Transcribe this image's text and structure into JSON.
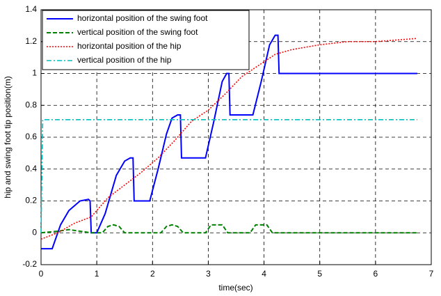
{
  "chart_data": {
    "type": "line",
    "xlabel": "time(sec)",
    "ylabel": "hip and swing foot tip position(m)",
    "xlim": [
      0,
      7
    ],
    "xticks": [
      0,
      1,
      2,
      3,
      4,
      5,
      6,
      7
    ],
    "ylim": [
      -0.2,
      1.4
    ],
    "yticks": [
      -0.2,
      0,
      0.2,
      0.4,
      0.6,
      0.8,
      1,
      1.2,
      1.4
    ],
    "grid": true,
    "legend": "upper left",
    "series": [
      {
        "name": " horizontal position of the swing foot",
        "color": "#0000ff",
        "style": "solid",
        "x": [
          0,
          0.2,
          0.35,
          0.5,
          0.7,
          0.85,
          0.88,
          0.9,
          1.0,
          1.15,
          1.35,
          1.5,
          1.6,
          1.65,
          1.67,
          1.95,
          2.1,
          2.25,
          2.35,
          2.45,
          2.5,
          2.52,
          2.95,
          3.1,
          3.25,
          3.33,
          3.37,
          3.39,
          3.8,
          3.95,
          4.1,
          4.2,
          4.25,
          4.27,
          6.75
        ],
        "values": [
          -0.1,
          -0.1,
          0.05,
          0.14,
          0.2,
          0.21,
          0.2,
          0.0,
          0.0,
          0.12,
          0.36,
          0.45,
          0.47,
          0.47,
          0.2,
          0.2,
          0.4,
          0.62,
          0.72,
          0.74,
          0.74,
          0.47,
          0.47,
          0.7,
          0.95,
          1.0,
          1.0,
          0.74,
          0.74,
          0.95,
          1.18,
          1.24,
          1.24,
          1.0,
          1.0
        ]
      },
      {
        "name": "vertical position of the swing foot",
        "color": "#008000",
        "style": "dashed",
        "x": [
          0,
          0.3,
          0.5,
          0.7,
          0.9,
          1.1,
          1.2,
          1.3,
          1.4,
          1.5,
          2.15,
          2.25,
          2.35,
          2.45,
          2.55,
          2.95,
          3.05,
          3.25,
          3.35,
          3.75,
          3.85,
          4.05,
          4.15,
          6.75
        ],
        "values": [
          0,
          0.01,
          0.02,
          0.01,
          0,
          0,
          0.04,
          0.05,
          0.04,
          0,
          0,
          0.04,
          0.05,
          0.04,
          0,
          0,
          0.05,
          0.05,
          0,
          0,
          0.05,
          0.05,
          0,
          0
        ]
      },
      {
        "name": "horizontal position of the hip",
        "color": "#ff0000",
        "style": "dotted",
        "x": [
          0,
          0.3,
          0.6,
          0.9,
          1.2,
          1.5,
          1.8,
          2.1,
          2.4,
          2.7,
          3.0,
          3.3,
          3.6,
          3.9,
          4.2,
          4.5,
          5.0,
          5.5,
          6.0,
          6.75
        ],
        "values": [
          -0.04,
          0,
          0.06,
          0.1,
          0.22,
          0.3,
          0.38,
          0.47,
          0.58,
          0.7,
          0.77,
          0.87,
          0.98,
          1.05,
          1.12,
          1.15,
          1.18,
          1.2,
          1.2,
          1.22
        ]
      },
      {
        "name": "vertical position of the hip",
        "color": "#00bfbf",
        "style": "dashdot",
        "x": [
          0,
          0.03,
          6.75
        ],
        "values": [
          0,
          0.71,
          0.71
        ]
      }
    ]
  }
}
